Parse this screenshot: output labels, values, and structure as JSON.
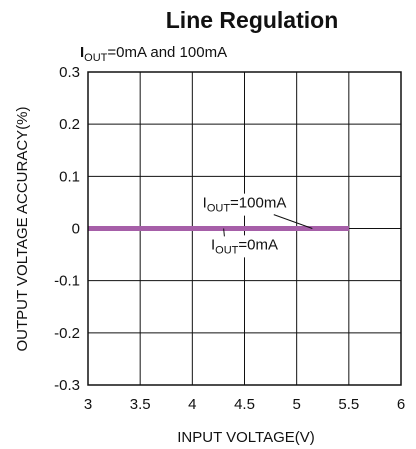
{
  "chart_data": {
    "type": "line",
    "title": "Line Regulation",
    "subtitle": {
      "prefix": "I",
      "subscript": "OUT",
      "suffix": "=0mA and 100mA"
    },
    "xlabel": "INPUT VOLTAGE(V)",
    "ylabel": "OUTPUT VOLTAGE ACCURACY(%)",
    "xlim": [
      3,
      6
    ],
    "ylim": [
      -0.3,
      0.3
    ],
    "xticks": [
      3,
      3.5,
      4,
      4.5,
      5,
      5.5,
      6
    ],
    "xtick_labels": [
      "3",
      "3.5",
      "4",
      "4.5",
      "5",
      "5.5",
      "6"
    ],
    "yticks": [
      0.3,
      0.2,
      0.1,
      0,
      -0.1,
      -0.2,
      -0.3
    ],
    "ytick_labels": [
      "0.3",
      "0.2",
      "0.1",
      "0",
      "-0.1",
      "-0.2",
      "-0.3"
    ],
    "grid": true,
    "series": [
      {
        "name": "IOUT=0mA",
        "x": [
          3.0,
          5.5
        ],
        "values": [
          0,
          0
        ],
        "color": "#a65fa8"
      },
      {
        "name": "IOUT=100mA",
        "x": [
          3.0,
          5.5
        ],
        "values": [
          0,
          0
        ],
        "color": "#a65fa8"
      }
    ],
    "annotations": [
      {
        "prefix": "I",
        "subscript": "OUT",
        "suffix": "=100mA",
        "x": 4.5,
        "y": 0.04,
        "arrow_to": [
          5.15,
          0
        ]
      },
      {
        "prefix": "I",
        "subscript": "OUT",
        "suffix": "=0mA",
        "x": 4.5,
        "y": -0.04,
        "arrow_to": [
          4.3,
          0
        ]
      }
    ]
  }
}
